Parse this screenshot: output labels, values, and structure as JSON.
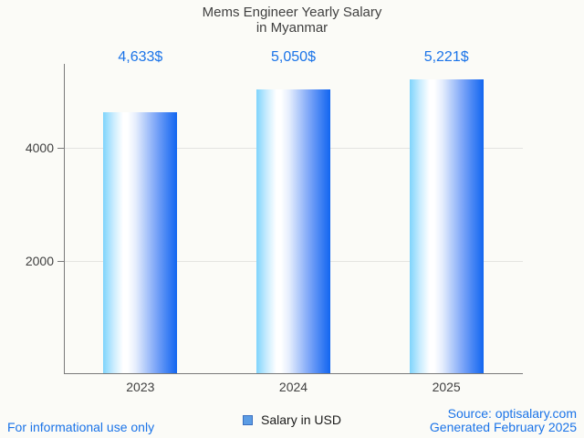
{
  "title": {
    "line1": "Mems Engineer Yearly Salary",
    "line2": "in Myanmar"
  },
  "chart_data": {
    "type": "bar",
    "title": "Mems Engineer Yearly Salary in Myanmar",
    "categories": [
      "2023",
      "2024",
      "2025"
    ],
    "values": [
      4633,
      5050,
      5221
    ],
    "value_labels": [
      "4,633$",
      "5,050$",
      "5,221$"
    ],
    "series_name": "Salary in USD",
    "xlabel": "",
    "ylabel": "",
    "ylim": [
      0,
      5500
    ],
    "yticks": [
      2000,
      4000
    ],
    "grid": true,
    "legend_position": "bottom"
  },
  "legend": {
    "label": "Salary in USD"
  },
  "footer": {
    "left": "For informational use only",
    "source": "Source: optisalary.com",
    "generated": "Generated February 2025"
  },
  "colors": {
    "accent_blue": "#1a73e8",
    "text_gray": "#404040",
    "axis_gray": "#7a7a7a",
    "gridline": "#e4e4e1",
    "background": "#fbfbf7",
    "bar_gradient_left": "#7fd4fc",
    "bar_gradient_mid": "#ffffff",
    "bar_gradient_right": "#1266f0",
    "legend_square_fill": "#5b9ce4",
    "legend_square_border": "#3a6fc0"
  }
}
